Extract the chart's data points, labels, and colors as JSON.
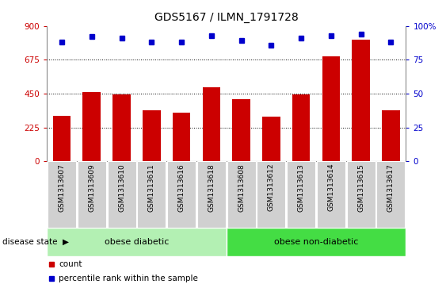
{
  "title": "GDS5167 / ILMN_1791728",
  "samples": [
    "GSM1313607",
    "GSM1313609",
    "GSM1313610",
    "GSM1313611",
    "GSM1313616",
    "GSM1313618",
    "GSM1313608",
    "GSM1313612",
    "GSM1313613",
    "GSM1313614",
    "GSM1313615",
    "GSM1313617"
  ],
  "counts": [
    300,
    460,
    445,
    340,
    325,
    490,
    415,
    295,
    445,
    700,
    810,
    340
  ],
  "percentiles": [
    88,
    92,
    91,
    88,
    88,
    93,
    89,
    86,
    91,
    93,
    94,
    88
  ],
  "bar_color": "#cc0000",
  "dot_color": "#0000cc",
  "ylim_left": [
    0,
    900
  ],
  "ylim_right": [
    0,
    100
  ],
  "yticks_left": [
    0,
    225,
    450,
    675,
    900
  ],
  "yticks_right": [
    0,
    25,
    50,
    75,
    100
  ],
  "right_tick_labels": [
    "0",
    "25",
    "50",
    "75",
    "100%"
  ],
  "group1_label": "obese diabetic",
  "group2_label": "obese non-diabetic",
  "group1_count": 6,
  "group2_count": 6,
  "group1_color": "#b3f0b3",
  "group2_color": "#44dd44",
  "disease_label": "disease state",
  "legend_count_label": "count",
  "legend_pct_label": "percentile rank within the sample",
  "bar_width": 0.6,
  "title_fontsize": 10,
  "tick_label_fontsize": 6.5,
  "axis_label_fontsize": 8,
  "left_tick_color": "#cc0000",
  "right_tick_color": "#0000cc",
  "bg_color": "#ffffff",
  "xtick_bg": "#d0d0d0"
}
